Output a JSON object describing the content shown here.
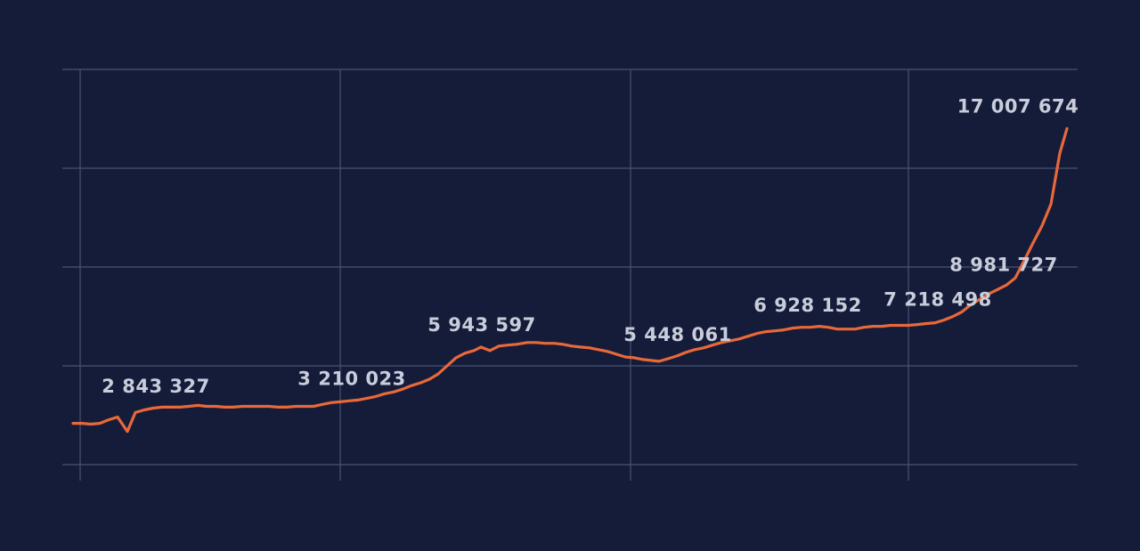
{
  "chart_data": {
    "type": "line",
    "grid": true,
    "xlim": [
      0,
      111.6
    ],
    "xticks": [
      0.8,
      30,
      62.6,
      93.8
    ],
    "ylim": [
      0,
      20000000
    ],
    "yticks": [
      0,
      5000000,
      10000000,
      15000000,
      20000000
    ],
    "series": [
      {
        "color": "#e8683a",
        "x": [
          0,
          1,
          2,
          3,
          4,
          5,
          6.1,
          7,
          8,
          9,
          10,
          11,
          12,
          13,
          14,
          15,
          16,
          17,
          18,
          19,
          20,
          21,
          22,
          23,
          24,
          25,
          26,
          27,
          28,
          29,
          30,
          31,
          32,
          33,
          34,
          35,
          36,
          37,
          38,
          39,
          40,
          41,
          42,
          43,
          44,
          45,
          45.8,
          46.8,
          47.8,
          48.8,
          49.8,
          51,
          52,
          53,
          54,
          55,
          56,
          57,
          58,
          59,
          60,
          61,
          62,
          63,
          64,
          65,
          65.8,
          66.8,
          67.8,
          68.8,
          69.8,
          70.8,
          71.8,
          72.8,
          73.8,
          74.8,
          75.8,
          76.8,
          77.8,
          78.8,
          79.8,
          80.8,
          81.8,
          82.8,
          83.8,
          84.8,
          85.8,
          86.8,
          87.8,
          88.8,
          89.8,
          90.8,
          91.8,
          92.8,
          93.8,
          94.8,
          95.8,
          96.8,
          97.8,
          98.8,
          99.8,
          100.8,
          101.8,
          102.8,
          103.8,
          104.8,
          105.8,
          106.8,
          107.8,
          108.8,
          109.8,
          110.8,
          111.6
        ],
        "values": [
          2090000,
          2090000,
          2050000,
          2090000,
          2270000,
          2410000,
          1680000,
          2640000,
          2770000,
          2860000,
          2910000,
          2910000,
          2910000,
          2950000,
          3000000,
          2950000,
          2950000,
          2910000,
          2910000,
          2950000,
          2950000,
          2950000,
          2950000,
          2910000,
          2910000,
          2950000,
          2950000,
          2950000,
          3050000,
          3140000,
          3180000,
          3230000,
          3270000,
          3360000,
          3450000,
          3590000,
          3680000,
          3820000,
          4000000,
          4140000,
          4320000,
          4590000,
          5000000,
          5410000,
          5640000,
          5770000,
          5950000,
          5770000,
          6000000,
          6050000,
          6090000,
          6180000,
          6180000,
          6140000,
          6140000,
          6090000,
          6000000,
          5950000,
          5910000,
          5820000,
          5730000,
          5590000,
          5450000,
          5410000,
          5320000,
          5270000,
          5230000,
          5360000,
          5500000,
          5680000,
          5820000,
          5910000,
          6050000,
          6180000,
          6270000,
          6360000,
          6500000,
          6640000,
          6730000,
          6770000,
          6820000,
          6910000,
          6950000,
          6950000,
          7000000,
          6950000,
          6860000,
          6860000,
          6860000,
          6950000,
          7000000,
          7000000,
          7050000,
          7050000,
          7050000,
          7090000,
          7140000,
          7180000,
          7320000,
          7500000,
          7730000,
          8090000,
          8360000,
          8640000,
          8860000,
          9090000,
          9450000,
          10320000,
          11230000,
          12090000,
          13180000,
          15770000,
          17007674
        ]
      }
    ],
    "annotations": [
      {
        "x": 9.3,
        "value": 2843327,
        "label": "2 843 327"
      },
      {
        "x": 31.3,
        "value": 3210023,
        "label": "3 210 023"
      },
      {
        "x": 45.9,
        "value": 5943597,
        "label": "5 943 597"
      },
      {
        "x": 67.9,
        "value": 5448061,
        "label": "5 448 061"
      },
      {
        "x": 82.5,
        "value": 6928152,
        "label": "6 928 152"
      },
      {
        "x": 97.1,
        "value": 7218498,
        "label": "7 218 498"
      },
      {
        "x": 104.5,
        "value": 8981727,
        "label": "8 981 727"
      },
      {
        "x": 106.1,
        "value": 17007674,
        "label": "17 007 674"
      }
    ]
  }
}
